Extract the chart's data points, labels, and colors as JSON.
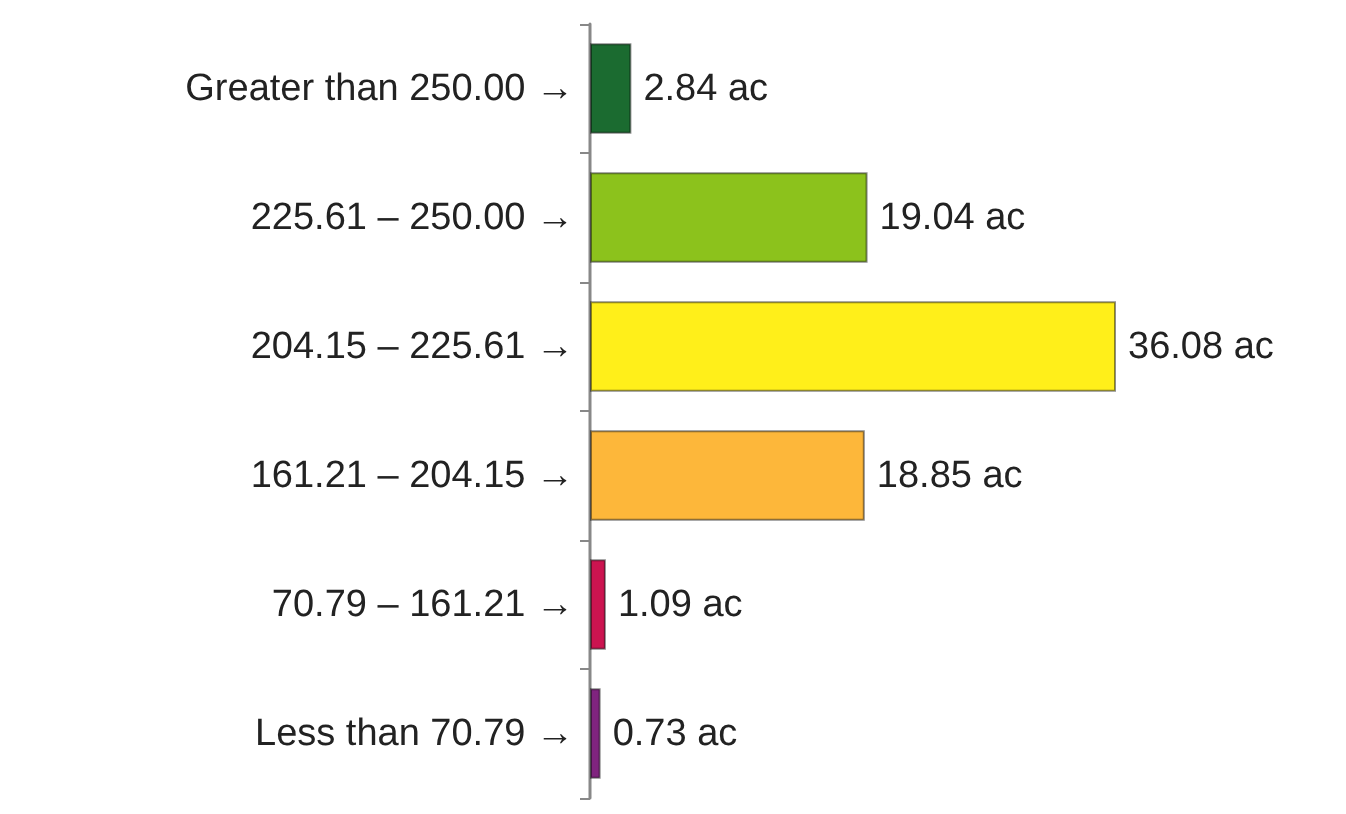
{
  "chart_data": {
    "type": "bar",
    "orientation": "horizontal",
    "categories": [
      "Greater than 250.00 →",
      "225.61 – 250.00 →",
      "204.15 – 225.61 →",
      "161.21 – 204.15 →",
      "70.79 – 161.21 →",
      "Less than 70.79 →"
    ],
    "values": [
      2.84,
      19.04,
      36.08,
      18.85,
      1.09,
      0.73
    ],
    "colors": [
      "#1b6b30",
      "#8cc21c",
      "#ffef1a",
      "#fdb73a",
      "#cc1450",
      "#80247f"
    ],
    "value_labels": [
      "2.84 ac",
      "19.04 ac",
      "36.08 ac",
      "18.85 ac",
      "1.09 ac",
      "0.73 ac"
    ],
    "grid": false
  }
}
